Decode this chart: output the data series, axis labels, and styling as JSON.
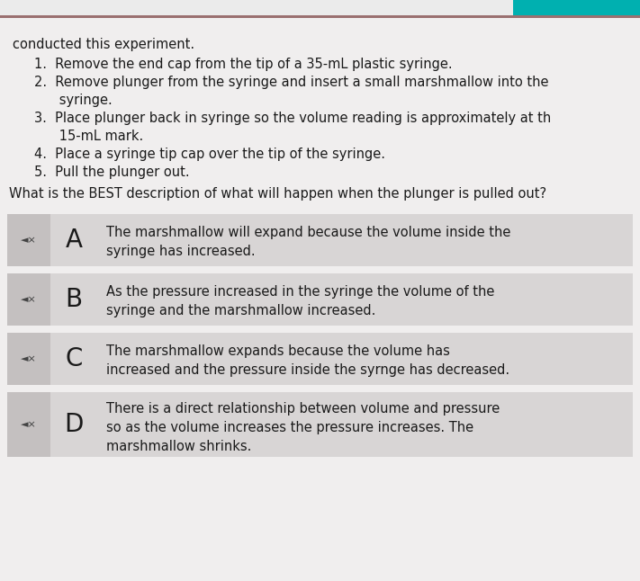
{
  "bg_color": "#ebebeb",
  "header_bg": "#f0eeee",
  "top_stripe_color": "#c0a0a8",
  "teal_color": "#00b0b0",
  "option_bg": "#d8d5d5",
  "icon_bg": "#c4c0c0",
  "text_color": "#1a1a1a",
  "header_text": "conducted this experiment.",
  "steps": [
    "1.  Remove the end cap from the tip of a 35-mL plastic syringe.",
    "2.  Remove plunger from the syringe and insert a small marshmallow into the\n      syringe.",
    "3.  Place plunger back in syringe so the volume reading is approximately at th\n      15-mL mark.",
    "4.  Place a syringe tip cap over the tip of the syringe.",
    "5.  Pull the plunger out."
  ],
  "question": "What is the BEST description of what will happen when the plunger is pulled out?",
  "options": [
    {
      "letter": "A",
      "text": "The marshmallow will expand because the volume inside the\nsyringe has increased."
    },
    {
      "letter": "B",
      "text": "As the pressure increased in the syringe the volume of the\nsyringe and the marshmallow increased."
    },
    {
      "letter": "C",
      "text": "The marshmallow expands because the volume has\nincreased and the pressure inside the syrnge has decreased."
    },
    {
      "letter": "D",
      "text": "There is a direct relationship between volume and pressure\nso as the volume increases the pressure increases. The\nmarshmallow shrinks."
    }
  ]
}
